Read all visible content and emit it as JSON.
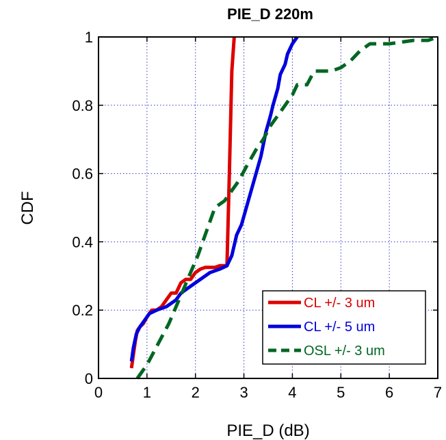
{
  "chart_data": {
    "type": "line",
    "title": "PIE_D 220m",
    "xlabel": "PIE_D (dB)",
    "ylabel": "CDF",
    "xlim": [
      0,
      7
    ],
    "ylim": [
      0,
      1
    ],
    "xticks": [
      "0",
      "1",
      "2",
      "3",
      "4",
      "5",
      "6",
      "7"
    ],
    "yticks": [
      "0",
      "0.2",
      "0.4",
      "0.6",
      "0.8",
      "1"
    ],
    "xtick_values": [
      0,
      1,
      2,
      3,
      4,
      5,
      6,
      7
    ],
    "ytick_values": [
      0,
      0.2,
      0.4,
      0.6,
      0.8,
      1
    ],
    "grid": true,
    "legend_position": "bottom-right",
    "series": [
      {
        "name": "CL +/- 3 um",
        "color": "#dd0000",
        "style": "solid",
        "points": [
          [
            0.68,
            0.03
          ],
          [
            0.72,
            0.07
          ],
          [
            0.76,
            0.11
          ],
          [
            0.8,
            0.14
          ],
          [
            0.85,
            0.15
          ],
          [
            0.92,
            0.16
          ],
          [
            1.0,
            0.18
          ],
          [
            1.1,
            0.2
          ],
          [
            1.2,
            0.2
          ],
          [
            1.3,
            0.21
          ],
          [
            1.4,
            0.23
          ],
          [
            1.5,
            0.25
          ],
          [
            1.6,
            0.25
          ],
          [
            1.7,
            0.28
          ],
          [
            1.8,
            0.29
          ],
          [
            1.9,
            0.29
          ],
          [
            2.0,
            0.31
          ],
          [
            2.1,
            0.32
          ],
          [
            2.2,
            0.325
          ],
          [
            2.4,
            0.325
          ],
          [
            2.5,
            0.33
          ],
          [
            2.65,
            0.33
          ],
          [
            2.7,
            0.6
          ],
          [
            2.75,
            0.9
          ],
          [
            2.8,
            1.0
          ]
        ]
      },
      {
        "name": "CL +/- 5 um",
        "color": "#0000dd",
        "style": "solid",
        "points": [
          [
            0.68,
            0.05
          ],
          [
            0.72,
            0.09
          ],
          [
            0.78,
            0.13
          ],
          [
            0.85,
            0.15
          ],
          [
            0.95,
            0.17
          ],
          [
            1.05,
            0.19
          ],
          [
            1.2,
            0.2
          ],
          [
            1.4,
            0.21
          ],
          [
            1.5,
            0.22
          ],
          [
            1.6,
            0.23
          ],
          [
            1.7,
            0.25
          ],
          [
            1.9,
            0.27
          ],
          [
            2.1,
            0.29
          ],
          [
            2.3,
            0.31
          ],
          [
            2.5,
            0.32
          ],
          [
            2.65,
            0.33
          ],
          [
            2.75,
            0.36
          ],
          [
            2.85,
            0.42
          ],
          [
            2.95,
            0.45
          ],
          [
            3.05,
            0.5
          ],
          [
            3.15,
            0.55
          ],
          [
            3.25,
            0.6
          ],
          [
            3.35,
            0.65
          ],
          [
            3.45,
            0.72
          ],
          [
            3.55,
            0.77
          ],
          [
            3.6,
            0.8
          ],
          [
            3.7,
            0.85
          ],
          [
            3.75,
            0.89
          ],
          [
            3.85,
            0.92
          ],
          [
            3.9,
            0.95
          ],
          [
            4.0,
            0.98
          ],
          [
            4.1,
            1.0
          ]
        ]
      },
      {
        "name": "OSL +/- 3 um",
        "color": "#006622",
        "style": "dashed",
        "points": [
          [
            0.8,
            0.0
          ],
          [
            1.0,
            0.04
          ],
          [
            1.15,
            0.08
          ],
          [
            1.3,
            0.12
          ],
          [
            1.45,
            0.16
          ],
          [
            1.6,
            0.21
          ],
          [
            1.75,
            0.26
          ],
          [
            1.9,
            0.31
          ],
          [
            2.05,
            0.36
          ],
          [
            2.2,
            0.42
          ],
          [
            2.3,
            0.46
          ],
          [
            2.4,
            0.5
          ],
          [
            2.6,
            0.52
          ],
          [
            2.75,
            0.55
          ],
          [
            2.9,
            0.58
          ],
          [
            3.05,
            0.62
          ],
          [
            3.25,
            0.67
          ],
          [
            3.4,
            0.7
          ],
          [
            3.55,
            0.74
          ],
          [
            3.7,
            0.77
          ],
          [
            3.85,
            0.8
          ],
          [
            4.0,
            0.83
          ],
          [
            4.1,
            0.86
          ],
          [
            4.3,
            0.86
          ],
          [
            4.45,
            0.9
          ],
          [
            4.8,
            0.9
          ],
          [
            5.0,
            0.91
          ],
          [
            5.2,
            0.93
          ],
          [
            5.4,
            0.96
          ],
          [
            5.6,
            0.98
          ],
          [
            6.0,
            0.98
          ],
          [
            6.5,
            0.99
          ],
          [
            6.8,
            0.99
          ],
          [
            7.0,
            1.0
          ]
        ]
      }
    ]
  }
}
